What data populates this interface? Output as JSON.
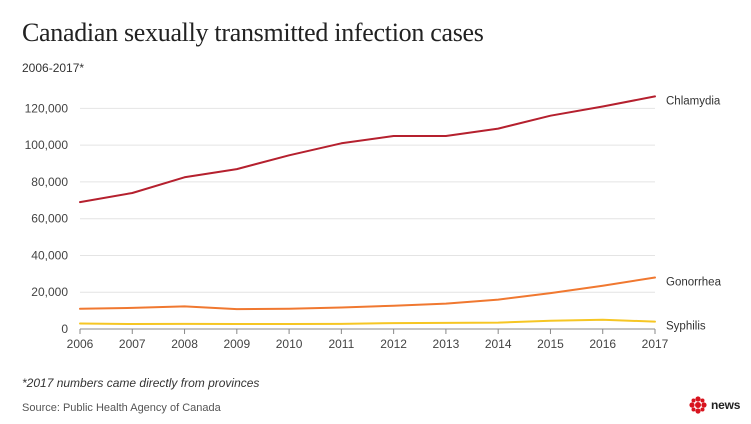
{
  "header": {
    "title": "Canadian sexually transmitted infection cases",
    "subtitle": "2006-2017*"
  },
  "footer": {
    "note": "*2017 numbers came directly from provinces",
    "source": "Source: Public Health Agency of Canada",
    "logo_text": "news"
  },
  "chart_data": {
    "type": "line",
    "title": "Canadian sexually transmitted infection cases",
    "subtitle": "2006-2017*",
    "xlabel": "",
    "ylabel": "",
    "x": [
      "2006",
      "2007",
      "2008",
      "2009",
      "2010",
      "2011",
      "2012",
      "2013",
      "2014",
      "2015",
      "2016",
      "2017"
    ],
    "ylim": [
      0,
      130000
    ],
    "yticks": [
      0,
      20000,
      40000,
      60000,
      80000,
      100000,
      120000
    ],
    "ytick_labels": [
      "0",
      "20,000",
      "40,000",
      "60,000",
      "80,000",
      "100,000",
      "120,000"
    ],
    "grid": true,
    "legend": "end-of-line labels",
    "series": [
      {
        "name": "Chlamydia",
        "color": "#b5202e",
        "values": [
          69000,
          74000,
          82500,
          87000,
          94500,
          101000,
          105000,
          105000,
          109000,
          116000,
          121000,
          126500
        ]
      },
      {
        "name": "Gonorrhea",
        "color": "#f07830",
        "values": [
          11000,
          11500,
          12300,
          10800,
          11000,
          11700,
          12700,
          13800,
          16000,
          19500,
          23500,
          28000
        ]
      },
      {
        "name": "Syphilis",
        "color": "#f6c624",
        "values": [
          3000,
          2700,
          2800,
          2700,
          2700,
          2800,
          3200,
          3300,
          3500,
          4500,
          5000,
          4000
        ]
      }
    ]
  }
}
